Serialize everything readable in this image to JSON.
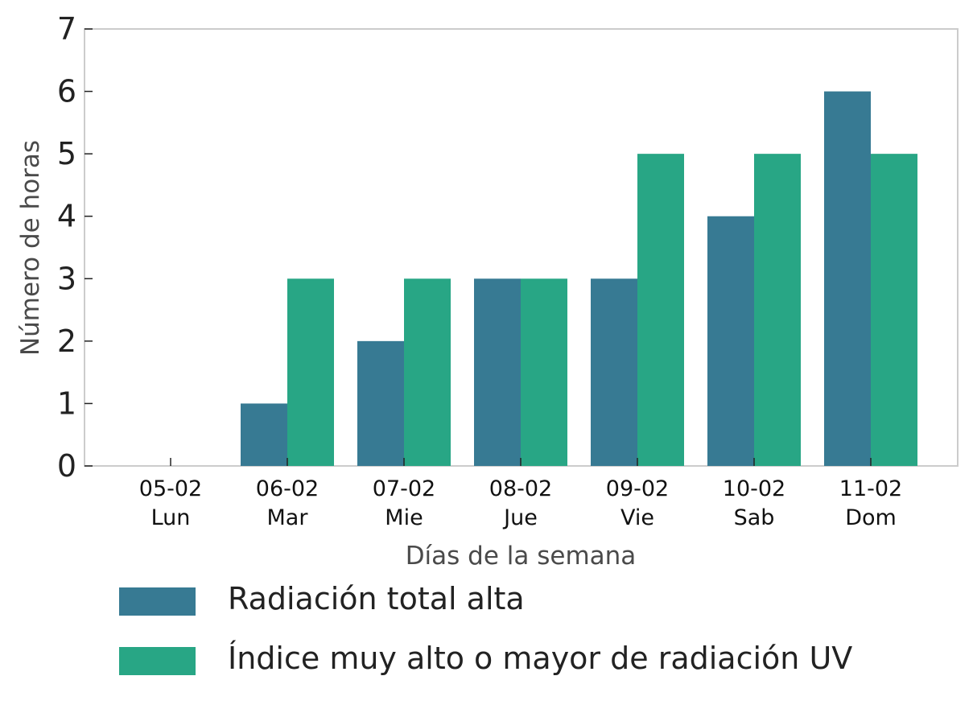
{
  "chart_data": {
    "type": "bar",
    "categories": [
      "05-02",
      "06-02",
      "07-02",
      "08-02",
      "09-02",
      "10-02",
      "11-02"
    ],
    "category_days": [
      "Lun",
      "Mar",
      "Mie",
      "Jue",
      "Vie",
      "Sab",
      "Dom"
    ],
    "series": [
      {
        "name": "Radiación total alta",
        "values": [
          0,
          1,
          2,
          3,
          3,
          4,
          6
        ],
        "color": "#377a93"
      },
      {
        "name": "Índice muy alto o mayor de radiación UV",
        "values": [
          0,
          3,
          3,
          3,
          5,
          5,
          5
        ],
        "color": "#28a685"
      }
    ],
    "title": "",
    "xlabel": "Días de la semana",
    "ylabel": "Número de horas",
    "ylim": [
      0,
      7
    ],
    "yticks": [
      0,
      1,
      2,
      3,
      4,
      5,
      6,
      7
    ],
    "grid": false,
    "legend_position": "bottom"
  },
  "legend": {
    "items": [
      {
        "label": "Radiación total alta",
        "color": "#377a93"
      },
      {
        "label": "Índice muy alto o mayor de radiación UV",
        "color": "#28a685"
      }
    ]
  }
}
